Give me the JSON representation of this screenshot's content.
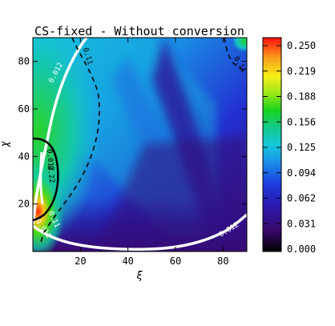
{
  "chart_data": {
    "type": "heatmap",
    "title": "CS-fixed - Without conversion",
    "xlabel": "ξ",
    "ylabel": "χ",
    "xlim": [
      0,
      90
    ],
    "ylim": [
      0,
      90
    ],
    "x_ticks": [
      20,
      40,
      60,
      80
    ],
    "y_ticks": [
      20,
      40,
      60,
      80
    ],
    "colorbar": {
      "min": 0.0,
      "max": 0.25,
      "tick_labels": [
        "0.250",
        "0.219",
        "0.188",
        "0.156",
        "0.125",
        "0.094",
        "0.062",
        "0.031",
        "0.000"
      ],
      "colors": [
        "#000000",
        "#3a0a6e",
        "#1f1fd8",
        "#1b8be0",
        "#15c6d6",
        "#12c98a",
        "#19d219",
        "#9be818",
        "#f6f01a",
        "#f7a21a",
        "#f2331a",
        "#ff0000"
      ]
    },
    "contour_labels": [
      "0.012",
      "0.11",
      "0.22",
      "0.11",
      "0.012",
      "0.012",
      "0.11",
      "0.012"
    ],
    "grid": false
  }
}
